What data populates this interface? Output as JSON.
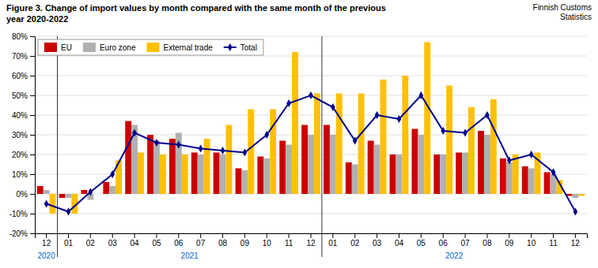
{
  "chart_data": {
    "type": "bar",
    "title": "Figure 3. Change of import values by month compared with the same month of the previous\nyear 2020-2022",
    "source": "Finnish Customs\nStatistics",
    "annotations": [
      "2020",
      "2021",
      "2022"
    ],
    "categories": [
      "12",
      "01",
      "02",
      "03",
      "04",
      "05",
      "06",
      "07",
      "08",
      "09",
      "10",
      "11",
      "12",
      "01",
      "02",
      "03",
      "04",
      "05",
      "06",
      "07",
      "08",
      "09",
      "10",
      "11",
      "12"
    ],
    "series": [
      {
        "name": "EU",
        "type": "bar",
        "color": "#cc0000",
        "values": [
          4,
          -2,
          2,
          6,
          37,
          30,
          28,
          21,
          21,
          13,
          19,
          27,
          35,
          35,
          16,
          27,
          20,
          33,
          20,
          21,
          32,
          18,
          14,
          11,
          -1
        ]
      },
      {
        "name": "Euro zone",
        "type": "bar",
        "color": "#b0b0b0",
        "values": [
          2,
          -2,
          -3,
          4,
          35,
          27,
          31,
          20,
          20,
          12,
          18,
          25,
          30,
          30,
          15,
          25,
          20,
          30,
          20,
          21,
          30,
          16,
          13,
          10,
          -2
        ]
      },
      {
        "name": "External trade",
        "type": "bar",
        "color": "#ffc000",
        "values": [
          -10,
          -10,
          0,
          17,
          21,
          20,
          20,
          28,
          35,
          43,
          43,
          72,
          51,
          51,
          51,
          58,
          60,
          77,
          55,
          44,
          48,
          20,
          21,
          7,
          -1
        ]
      },
      {
        "name": "Total",
        "type": "line",
        "color": "#00008b",
        "marker": "diamond",
        "line_style": "solid",
        "values": [
          -5,
          -9,
          1,
          10,
          31,
          26,
          25,
          23,
          22,
          21,
          30,
          46,
          50,
          44,
          27,
          40,
          38,
          50,
          32,
          31,
          40,
          17,
          20,
          11,
          -9
        ]
      }
    ],
    "ylim": [
      -20,
      80
    ],
    "yticks": [
      {
        "value": -20,
        "label": "-20%"
      },
      {
        "value": -10,
        "label": "-10%"
      },
      {
        "value": 0,
        "label": "0%"
      },
      {
        "value": 10,
        "label": "10%"
      },
      {
        "value": 20,
        "label": "20%"
      },
      {
        "value": 30,
        "label": "30%"
      },
      {
        "value": 40,
        "label": "40%"
      },
      {
        "value": 50,
        "label": "50%"
      },
      {
        "value": 60,
        "label": "60%"
      },
      {
        "value": 70,
        "label": "70%"
      },
      {
        "value": 80,
        "label": "80%"
      }
    ],
    "grid": true,
    "legend": "top-left"
  }
}
